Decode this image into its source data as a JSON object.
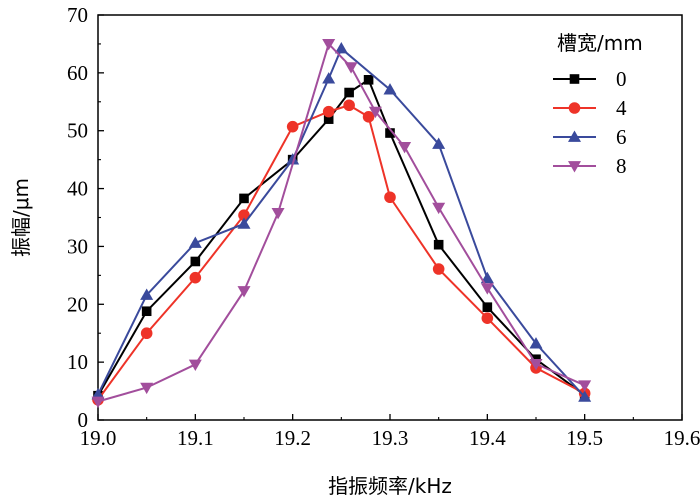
{
  "chart_data": {
    "type": "line",
    "xlabel": "指振频率/kHz",
    "ylabel": "振幅/μm",
    "xlim": [
      19.0,
      19.6
    ],
    "ylim": [
      0,
      70
    ],
    "xticks": [
      "19.0",
      "19.1",
      "19.2",
      "19.3",
      "19.4",
      "19.5",
      "19.6"
    ],
    "yticks": [
      "0",
      "10",
      "20",
      "30",
      "40",
      "50",
      "60",
      "70"
    ],
    "grid": false,
    "legend": {
      "title": "槽宽/mm",
      "placement": "top-right"
    },
    "series": [
      {
        "name": "0",
        "color": "#000000",
        "marker": "square",
        "x": [
          19.0,
          19.05,
          19.1,
          19.15,
          19.2,
          19.237,
          19.258,
          19.278,
          19.3,
          19.35,
          19.4,
          19.45,
          19.5
        ],
        "y": [
          4.2,
          18.8,
          27.4,
          38.3,
          45.0,
          52.0,
          56.6,
          58.8,
          49.6,
          30.3,
          19.5,
          10.5,
          4.3
        ]
      },
      {
        "name": "4",
        "color": "#ee3328",
        "marker": "circle",
        "x": [
          19.0,
          19.05,
          19.1,
          19.15,
          19.2,
          19.237,
          19.258,
          19.278,
          19.3,
          19.35,
          19.4,
          19.45,
          19.5
        ],
        "y": [
          3.5,
          15.0,
          24.6,
          35.4,
          50.7,
          53.3,
          54.4,
          52.4,
          38.5,
          26.1,
          17.6,
          9.0,
          4.6
        ]
      },
      {
        "name": "6",
        "color": "#3a4a9c",
        "marker": "triangle-up",
        "x": [
          19.0,
          19.05,
          19.1,
          19.15,
          19.2,
          19.237,
          19.25,
          19.3,
          19.35,
          19.4,
          19.45,
          19.5
        ],
        "y": [
          4.4,
          21.6,
          30.6,
          33.9,
          45.0,
          59.0,
          64.2,
          57.1,
          47.7,
          24.5,
          13.2,
          4.0
        ]
      },
      {
        "name": "8",
        "color": "#a24e9c",
        "marker": "triangle-down",
        "x": [
          19.0,
          19.05,
          19.1,
          19.15,
          19.185,
          19.237,
          19.26,
          19.285,
          19.315,
          19.35,
          19.4,
          19.45,
          19.5
        ],
        "y": [
          3.2,
          5.6,
          9.6,
          22.3,
          35.8,
          65.0,
          61.0,
          53.3,
          47.2,
          36.7,
          22.8,
          9.7,
          6.0
        ]
      }
    ]
  }
}
